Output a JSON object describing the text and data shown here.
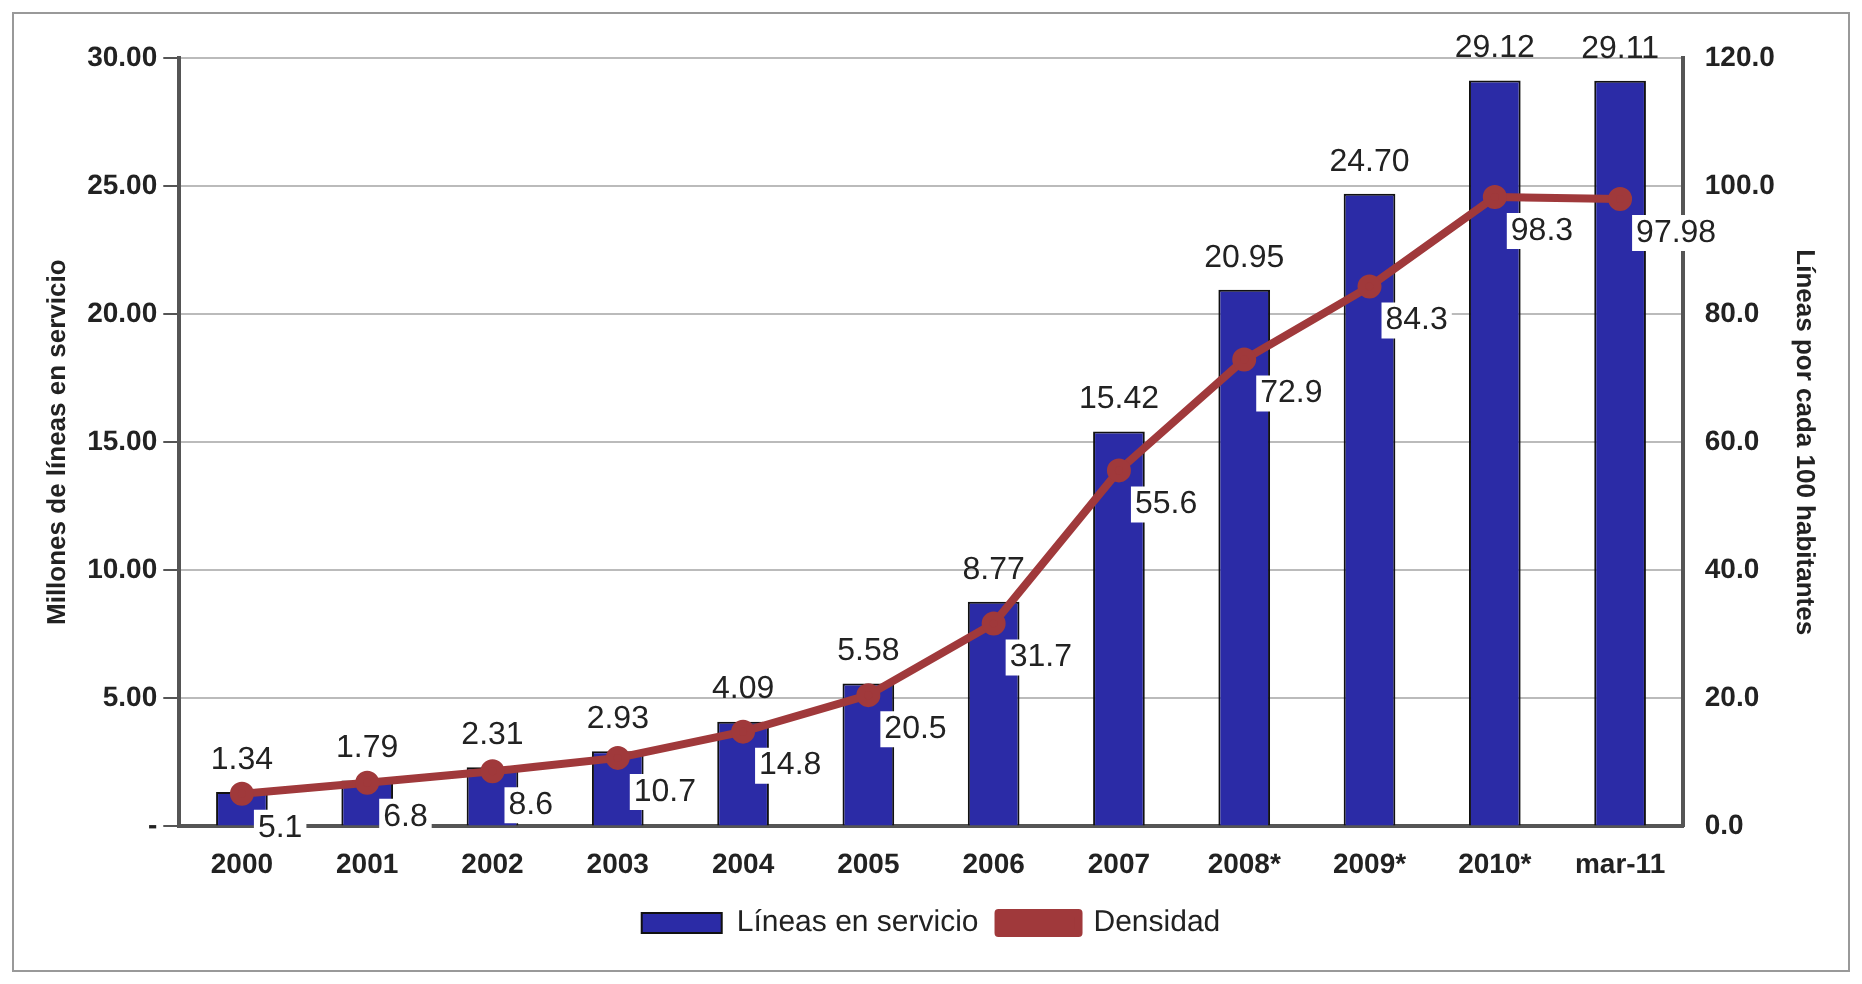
{
  "chart_data": {
    "type": "bar",
    "categories": [
      "2000",
      "2001",
      "2002",
      "2003",
      "2004",
      "2005",
      "2006",
      "2007",
      "2008*",
      "2009*",
      "2010*",
      "mar-11"
    ],
    "ylabel": "Millones de líneas en servicio",
    "y2label": "Líneas por cada 100 habitantes",
    "series": [
      {
        "name": "Líneas en servicio",
        "color": "#2b2ba6",
        "values": [
          1.34,
          1.79,
          2.31,
          2.93,
          4.09,
          5.58,
          8.77,
          15.42,
          20.95,
          24.7,
          29.12,
          29.11
        ],
        "value_labels": [
          "1.34",
          "1.79",
          "2.31",
          "2.93",
          "4.09",
          "5.58",
          "8.77",
          "15.42",
          "20.95",
          "24.70",
          "29.12",
          "29.11"
        ]
      },
      {
        "name": "Densidad",
        "type": "line",
        "axis": "y2",
        "color": "#a0393b",
        "marker": "circle",
        "values": [
          5.1,
          6.8,
          8.6,
          10.7,
          14.8,
          20.5,
          31.7,
          55.6,
          72.9,
          84.3,
          98.3,
          97.98
        ],
        "value_labels": [
          "5.1",
          "6.8",
          "8.6",
          "10.7",
          "14.8",
          "20.5",
          "31.7",
          "55.6",
          "72.9",
          "84.3",
          "98.3",
          "97.98"
        ]
      }
    ],
    "ylim": [
      0,
      30
    ],
    "yticks": [
      {
        "value": 0,
        "label": "-"
      },
      {
        "value": 5,
        "label": "5.00"
      },
      {
        "value": 10,
        "label": "10.00"
      },
      {
        "value": 15,
        "label": "15.00"
      },
      {
        "value": 20,
        "label": "20.00"
      },
      {
        "value": 25,
        "label": "25.00"
      },
      {
        "value": 30,
        "label": "30.00"
      }
    ],
    "y2lim": [
      0,
      120
    ],
    "y2ticks": [
      {
        "value": 0,
        "label": "0.0"
      },
      {
        "value": 20,
        "label": "20.0"
      },
      {
        "value": 40,
        "label": "40.0"
      },
      {
        "value": 60,
        "label": "60.0"
      },
      {
        "value": 80,
        "label": "80.0"
      },
      {
        "value": 100,
        "label": "100.0"
      },
      {
        "value": 120,
        "label": "120.0"
      }
    ],
    "grid": "y",
    "legend": "bottom"
  }
}
